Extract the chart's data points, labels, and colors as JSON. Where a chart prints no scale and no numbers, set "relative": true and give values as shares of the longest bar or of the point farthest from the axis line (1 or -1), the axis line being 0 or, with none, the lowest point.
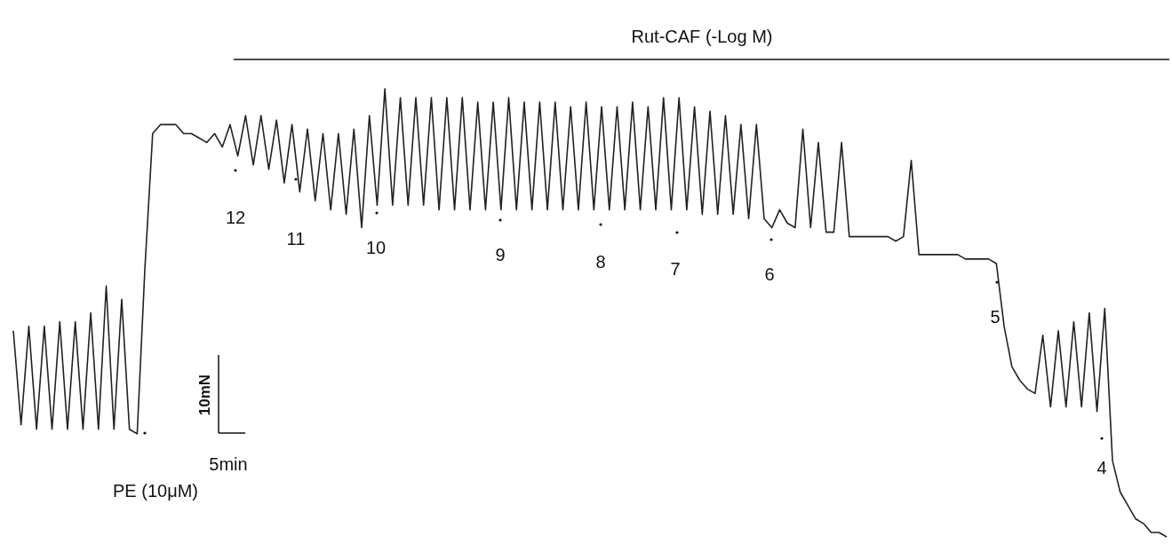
{
  "chart_data": {
    "type": "line",
    "relative": true,
    "color": "#222222",
    "categories": [
      null,
      null,
      null,
      null,
      null,
      null,
      null,
      null,
      null,
      null,
      null,
      null,
      null,
      null,
      null,
      null,
      null,
      null,
      null,
      null,
      null,
      null,
      null,
      null,
      null,
      null,
      null,
      null,
      null,
      null,
      null,
      null,
      null,
      null,
      null,
      null,
      null,
      null,
      null,
      null,
      null,
      null,
      null,
      null,
      null,
      null,
      null,
      null,
      null,
      null,
      null,
      null,
      null,
      null,
      null,
      null,
      null,
      null,
      null,
      null,
      null,
      null,
      null,
      null,
      null,
      null,
      null,
      null,
      null,
      null,
      null,
      null,
      null,
      null,
      null,
      null,
      null,
      null,
      null,
      null,
      null,
      null,
      null,
      null,
      null,
      null,
      null,
      null,
      null,
      null,
      null,
      null,
      null,
      null,
      null,
      null,
      null,
      null,
      null,
      null,
      null,
      null,
      null,
      null,
      null,
      null,
      null,
      null,
      null,
      null,
      null,
      null,
      null,
      null,
      null,
      null,
      null,
      null,
      null,
      null,
      null,
      null,
      null,
      null,
      null,
      null,
      null,
      null,
      null,
      null,
      null,
      null,
      null,
      null,
      null,
      null,
      null,
      null,
      null,
      null,
      null,
      null,
      null,
      null,
      null,
      null,
      null,
      null,
      null,
      null
    ],
    "values": [
      0.46,
      0.25,
      0.47,
      0.24,
      0.47,
      0.24,
      0.48,
      0.24,
      0.48,
      0.24,
      0.5,
      0.24,
      0.56,
      0.24,
      0.53,
      0.24,
      0.23,
      0.6,
      0.9,
      0.92,
      0.92,
      0.92,
      0.9,
      0.9,
      0.89,
      0.88,
      0.9,
      0.87,
      0.92,
      0.85,
      0.94,
      0.83,
      0.94,
      0.82,
      0.93,
      0.79,
      0.92,
      0.77,
      0.91,
      0.75,
      0.9,
      0.73,
      0.9,
      0.72,
      0.91,
      0.69,
      0.94,
      0.74,
      1,
      0.74,
      0.98,
      0.74,
      0.98,
      0.74,
      0.98,
      0.73,
      0.98,
      0.73,
      0.98,
      0.73,
      0.97,
      0.73,
      0.97,
      0.73,
      0.98,
      0.73,
      0.97,
      0.73,
      0.97,
      0.73,
      0.97,
      0.73,
      0.96,
      0.73,
      0.97,
      0.73,
      0.96,
      0.73,
      0.96,
      0.73,
      0.97,
      0.73,
      0.96,
      0.73,
      0.98,
      0.73,
      0.98,
      0.73,
      0.96,
      0.72,
      0.95,
      0.72,
      0.94,
      0.72,
      0.92,
      0.71,
      0.92,
      0.71,
      0.69,
      0.73,
      0.7,
      0.69,
      0.91,
      0.69,
      0.88,
      0.68,
      0.68,
      0.88,
      0.67,
      0.67,
      0.67,
      0.67,
      0.67,
      0.67,
      0.66,
      0.67,
      0.84,
      0.63,
      0.63,
      0.63,
      0.63,
      0.63,
      0.63,
      0.62,
      0.62,
      0.62,
      0.62,
      0.61,
      0.47,
      0.38,
      0.35,
      0.33,
      0.32,
      0.45,
      0.29,
      0.46,
      0.29,
      0.48,
      0.29,
      0.5,
      0.28,
      0.51,
      0.17,
      0.1,
      0.07,
      0.04,
      0.03,
      0.01,
      0.01,
      0
    ],
    "annotations": [
      "Rut-CAF (-Log M)",
      "PE (10μM)",
      "12",
      "11",
      "10",
      "9",
      "8",
      "7",
      "6",
      "5",
      "4",
      "10mN",
      "5min"
    ]
  }
}
